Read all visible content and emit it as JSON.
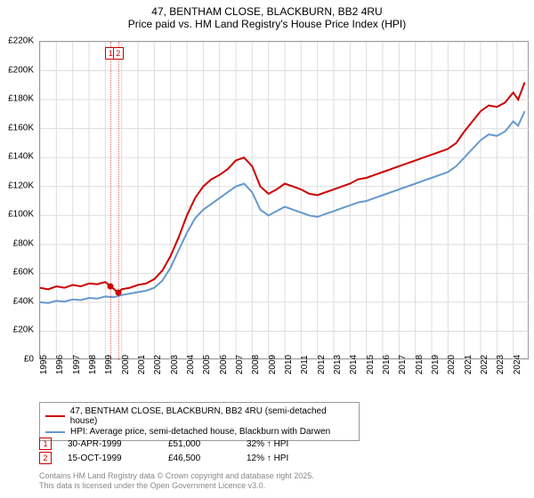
{
  "title": {
    "main": "47, BENTHAM CLOSE, BLACKBURN, BB2 4RU",
    "sub": "Price paid vs. HM Land Registry's House Price Index (HPI)"
  },
  "chart": {
    "type": "line",
    "background_color": "#ffffff",
    "grid_color": "#dddddd",
    "border_color": "#999999",
    "ylim": [
      0,
      220000
    ],
    "ytick_step": 20000,
    "y_labels": [
      "£0",
      "£20K",
      "£40K",
      "£60K",
      "£80K",
      "£100K",
      "£120K",
      "£140K",
      "£160K",
      "£180K",
      "£200K",
      "£220K"
    ],
    "x_years": [
      1995,
      1996,
      1997,
      1998,
      1999,
      2000,
      2001,
      2002,
      2003,
      2004,
      2005,
      2006,
      2007,
      2008,
      2009,
      2010,
      2011,
      2012,
      2013,
      2014,
      2015,
      2016,
      2017,
      2018,
      2019,
      2020,
      2021,
      2022,
      2023,
      2024
    ],
    "series": [
      {
        "name": "price_paid",
        "label": "47, BENTHAM CLOSE, BLACKBURN, BB2 4RU (semi-detached house)",
        "color": "#cc0000",
        "line_width": 2,
        "data": [
          [
            1995,
            50000
          ],
          [
            1995.5,
            49000
          ],
          [
            1996,
            51000
          ],
          [
            1996.5,
            50000
          ],
          [
            1997,
            52000
          ],
          [
            1997.5,
            51000
          ],
          [
            1998,
            53000
          ],
          [
            1998.5,
            52500
          ],
          [
            1999,
            54000
          ],
          [
            1999.33,
            51000
          ],
          [
            1999.8,
            46500
          ],
          [
            2000,
            49000
          ],
          [
            2000.5,
            50000
          ],
          [
            2001,
            52000
          ],
          [
            2001.5,
            53000
          ],
          [
            2002,
            56000
          ],
          [
            2002.5,
            62000
          ],
          [
            2003,
            72000
          ],
          [
            2003.5,
            85000
          ],
          [
            2004,
            100000
          ],
          [
            2004.5,
            112000
          ],
          [
            2005,
            120000
          ],
          [
            2005.5,
            125000
          ],
          [
            2006,
            128000
          ],
          [
            2006.5,
            132000
          ],
          [
            2007,
            138000
          ],
          [
            2007.5,
            140000
          ],
          [
            2008,
            134000
          ],
          [
            2008.5,
            120000
          ],
          [
            2009,
            115000
          ],
          [
            2009.5,
            118000
          ],
          [
            2010,
            122000
          ],
          [
            2010.5,
            120000
          ],
          [
            2011,
            118000
          ],
          [
            2011.5,
            115000
          ],
          [
            2012,
            114000
          ],
          [
            2012.5,
            116000
          ],
          [
            2013,
            118000
          ],
          [
            2013.5,
            120000
          ],
          [
            2014,
            122000
          ],
          [
            2014.5,
            125000
          ],
          [
            2015,
            126000
          ],
          [
            2015.5,
            128000
          ],
          [
            2016,
            130000
          ],
          [
            2016.5,
            132000
          ],
          [
            2017,
            134000
          ],
          [
            2017.5,
            136000
          ],
          [
            2018,
            138000
          ],
          [
            2018.5,
            140000
          ],
          [
            2019,
            142000
          ],
          [
            2019.5,
            144000
          ],
          [
            2020,
            146000
          ],
          [
            2020.5,
            150000
          ],
          [
            2021,
            158000
          ],
          [
            2021.5,
            165000
          ],
          [
            2022,
            172000
          ],
          [
            2022.5,
            176000
          ],
          [
            2023,
            175000
          ],
          [
            2023.5,
            178000
          ],
          [
            2024,
            185000
          ],
          [
            2024.3,
            180000
          ],
          [
            2024.7,
            192000
          ]
        ]
      },
      {
        "name": "hpi",
        "label": "HPI: Average price, semi-detached house, Blackburn with Darwen",
        "color": "#6699cc",
        "line_width": 2,
        "data": [
          [
            1995,
            40000
          ],
          [
            1995.5,
            39500
          ],
          [
            1996,
            41000
          ],
          [
            1996.5,
            40500
          ],
          [
            1997,
            42000
          ],
          [
            1997.5,
            41500
          ],
          [
            1998,
            43000
          ],
          [
            1998.5,
            42500
          ],
          [
            1999,
            44000
          ],
          [
            1999.5,
            43500
          ],
          [
            2000,
            45000
          ],
          [
            2000.5,
            46000
          ],
          [
            2001,
            47000
          ],
          [
            2001.5,
            48000
          ],
          [
            2002,
            50000
          ],
          [
            2002.5,
            55000
          ],
          [
            2003,
            64000
          ],
          [
            2003.5,
            76000
          ],
          [
            2004,
            88000
          ],
          [
            2004.5,
            98000
          ],
          [
            2005,
            104000
          ],
          [
            2005.5,
            108000
          ],
          [
            2006,
            112000
          ],
          [
            2006.5,
            116000
          ],
          [
            2007,
            120000
          ],
          [
            2007.5,
            122000
          ],
          [
            2008,
            116000
          ],
          [
            2008.5,
            104000
          ],
          [
            2009,
            100000
          ],
          [
            2009.5,
            103000
          ],
          [
            2010,
            106000
          ],
          [
            2010.5,
            104000
          ],
          [
            2011,
            102000
          ],
          [
            2011.5,
            100000
          ],
          [
            2012,
            99000
          ],
          [
            2012.5,
            101000
          ],
          [
            2013,
            103000
          ],
          [
            2013.5,
            105000
          ],
          [
            2014,
            107000
          ],
          [
            2014.5,
            109000
          ],
          [
            2015,
            110000
          ],
          [
            2015.5,
            112000
          ],
          [
            2016,
            114000
          ],
          [
            2016.5,
            116000
          ],
          [
            2017,
            118000
          ],
          [
            2017.5,
            120000
          ],
          [
            2018,
            122000
          ],
          [
            2018.5,
            124000
          ],
          [
            2019,
            126000
          ],
          [
            2019.5,
            128000
          ],
          [
            2020,
            130000
          ],
          [
            2020.5,
            134000
          ],
          [
            2021,
            140000
          ],
          [
            2021.5,
            146000
          ],
          [
            2022,
            152000
          ],
          [
            2022.5,
            156000
          ],
          [
            2023,
            155000
          ],
          [
            2023.5,
            158000
          ],
          [
            2024,
            165000
          ],
          [
            2024.3,
            162000
          ],
          [
            2024.7,
            172000
          ]
        ]
      }
    ],
    "markers": [
      {
        "num": "1",
        "year": 1999.33,
        "price": 51000
      },
      {
        "num": "2",
        "year": 1999.79,
        "price": 46500
      }
    ]
  },
  "legend": {
    "items": [
      {
        "color": "#cc0000",
        "text": "47, BENTHAM CLOSE, BLACKBURN, BB2 4RU (semi-detached house)"
      },
      {
        "color": "#6699cc",
        "text": "HPI: Average price, semi-detached house, Blackburn with Darwen"
      }
    ]
  },
  "transactions": [
    {
      "num": "1",
      "date": "30-APR-1999",
      "price": "£51,000",
      "delta": "32% ↑ HPI"
    },
    {
      "num": "2",
      "date": "15-OCT-1999",
      "price": "£46,500",
      "delta": "12% ↑ HPI"
    }
  ],
  "attribution": {
    "line1": "Contains HM Land Registry data © Crown copyright and database right 2025.",
    "line2": "This data is licensed under the Open Government Licence v3.0."
  }
}
